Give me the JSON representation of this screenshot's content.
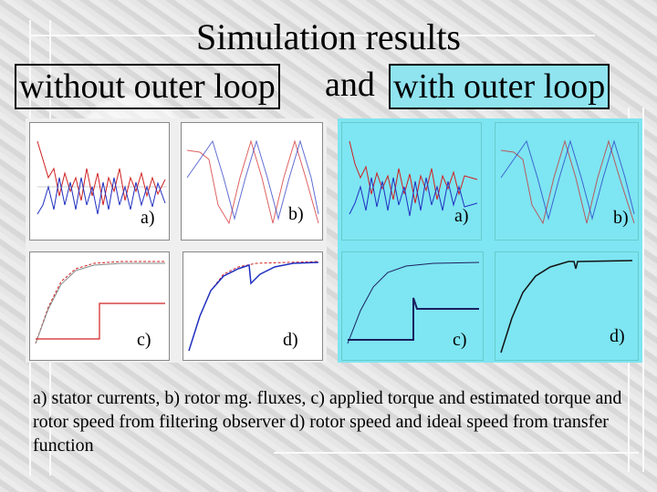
{
  "title": "Simulation results",
  "subtitle": {
    "left": "without outer loop",
    "middle": "and",
    "right": "with outer loop"
  },
  "panels": {
    "labels": [
      "a)",
      "b)",
      "c)",
      "d)"
    ]
  },
  "caption": "a) stator currents, b) rotor mg. fluxes, c) applied torque and estimated torque and rotor speed from filtering observer d) rotor speed and ideal speed from transfer function",
  "colors": {
    "right_panel": "#7ee5f2",
    "subtitle_box": "#8fe4f0",
    "trace_red": "#d02020",
    "trace_blue": "#2030c0"
  }
}
